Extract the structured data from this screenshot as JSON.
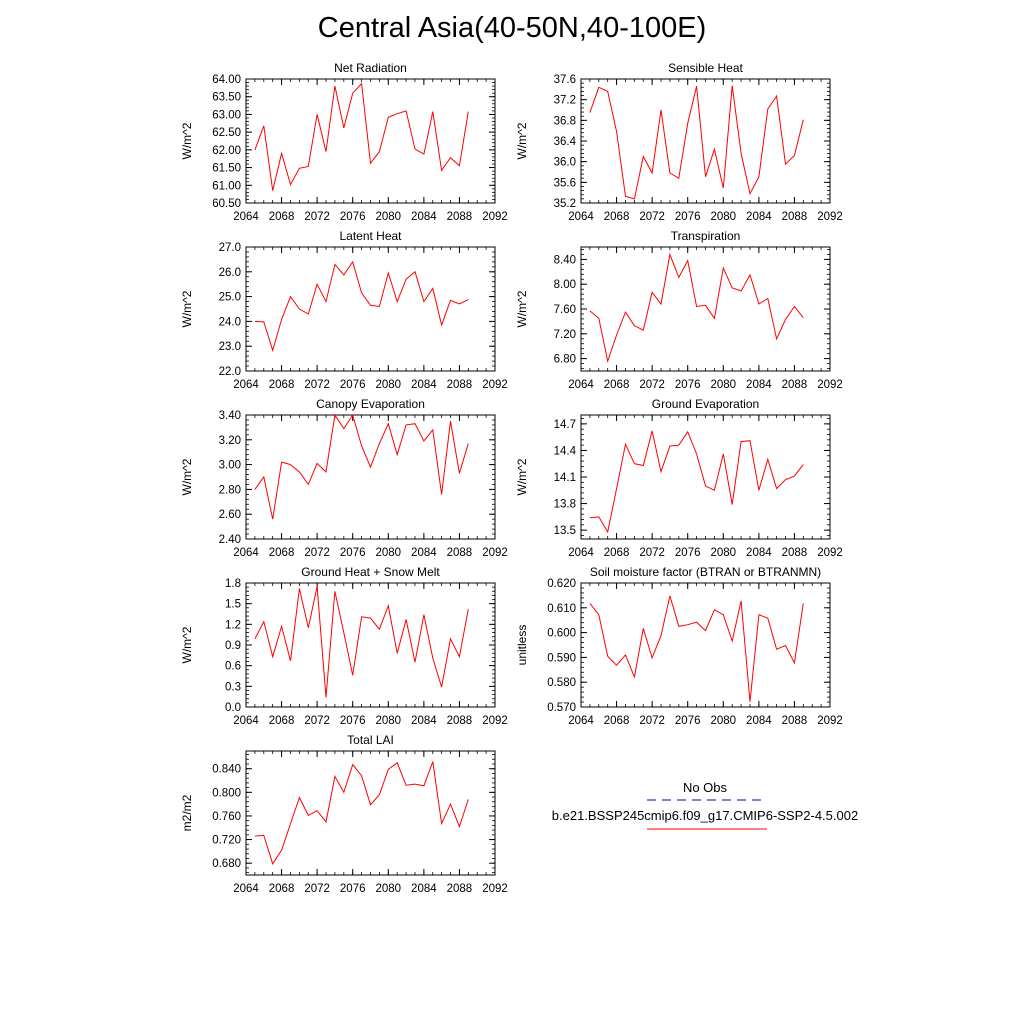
{
  "title": "Central Asia(40-50N,40-100E)",
  "legend": {
    "title": "No Obs",
    "obs_color": "#3a3aa0",
    "series_label": "b.e21.BSSP245cmip6.f09_g17.CMIP6-SSP2-4.5.002",
    "series_color": "#ff0000"
  },
  "chart_data": [
    {
      "type": "line",
      "title": "Net Radiation",
      "ylabel": "W/m^2",
      "xlim": [
        2064,
        2092
      ],
      "ylim": [
        60.5,
        64.0
      ],
      "xticks": [
        "2064",
        "2068",
        "2072",
        "2076",
        "2080",
        "2084",
        "2088",
        "2092"
      ],
      "yticks": [
        "60.50",
        "61.00",
        "61.50",
        "62.00",
        "62.50",
        "63.00",
        "63.50",
        "64.00"
      ],
      "x": [
        2065,
        2066,
        2067,
        2068,
        2069,
        2070,
        2071,
        2072,
        2073,
        2074,
        2075,
        2076,
        2077,
        2078,
        2079,
        2080,
        2081,
        2082,
        2083,
        2084,
        2085,
        2086,
        2087,
        2088,
        2089
      ],
      "values": [
        62.0,
        62.68,
        60.85,
        61.9,
        61.02,
        61.48,
        61.53,
        63.0,
        61.95,
        63.8,
        62.62,
        63.6,
        63.87,
        61.62,
        61.95,
        62.92,
        63.02,
        63.1,
        62.02,
        61.88,
        63.08,
        61.42,
        61.78,
        61.55,
        63.08
      ]
    },
    {
      "type": "line",
      "title": "Sensible Heat",
      "ylabel": "W/m^2",
      "xlim": [
        2064,
        2092
      ],
      "ylim": [
        35.2,
        37.6
      ],
      "xticks": [
        "2064",
        "2068",
        "2072",
        "2076",
        "2080",
        "2084",
        "2088",
        "2092"
      ],
      "yticks": [
        "35.2",
        "35.6",
        "36.0",
        "36.4",
        "36.8",
        "37.2",
        "37.6"
      ],
      "x": [
        2065,
        2066,
        2067,
        2068,
        2069,
        2070,
        2071,
        2072,
        2073,
        2074,
        2075,
        2076,
        2077,
        2078,
        2079,
        2080,
        2081,
        2082,
        2083,
        2084,
        2085,
        2086,
        2087,
        2088,
        2089
      ],
      "values": [
        36.95,
        37.44,
        37.36,
        36.58,
        35.33,
        35.28,
        36.1,
        35.78,
        37.0,
        35.78,
        35.68,
        36.74,
        37.46,
        35.71,
        36.24,
        35.49,
        37.47,
        36.16,
        35.38,
        35.71,
        37.02,
        37.27,
        35.95,
        36.12,
        36.81
      ]
    },
    {
      "type": "line",
      "title": "Latent Heat",
      "ylabel": "W/m^2",
      "xlim": [
        2064,
        2092
      ],
      "ylim": [
        22.0,
        27.0
      ],
      "xticks": [
        "2064",
        "2068",
        "2072",
        "2076",
        "2080",
        "2084",
        "2088",
        "2092"
      ],
      "yticks": [
        "22.0",
        "23.0",
        "24.0",
        "25.0",
        "26.0",
        "27.0"
      ],
      "x": [
        2065,
        2066,
        2067,
        2068,
        2069,
        2070,
        2071,
        2072,
        2073,
        2074,
        2075,
        2076,
        2077,
        2078,
        2079,
        2080,
        2081,
        2082,
        2083,
        2084,
        2085,
        2086,
        2087,
        2088,
        2089
      ],
      "values": [
        24.0,
        23.98,
        22.83,
        24.08,
        25.0,
        24.5,
        24.3,
        25.5,
        24.8,
        26.3,
        25.88,
        26.4,
        25.15,
        24.65,
        24.6,
        25.95,
        24.8,
        25.7,
        26.0,
        24.8,
        25.33,
        23.85,
        24.85,
        24.7,
        24.88
      ]
    },
    {
      "type": "line",
      "title": "Transpiration",
      "ylabel": "W/m^2",
      "xlim": [
        2064,
        2092
      ],
      "ylim": [
        6.6,
        8.6
      ],
      "xticks": [
        "2064",
        "2068",
        "2072",
        "2076",
        "2080",
        "2084",
        "2088",
        "2092"
      ],
      "yticks": [
        "6.80",
        "7.20",
        "7.60",
        "8.00",
        "8.40"
      ],
      "x": [
        2065,
        2066,
        2067,
        2068,
        2069,
        2070,
        2071,
        2072,
        2073,
        2074,
        2075,
        2076,
        2077,
        2078,
        2079,
        2080,
        2081,
        2082,
        2083,
        2084,
        2085,
        2086,
        2087,
        2088,
        2089
      ],
      "values": [
        7.57,
        7.45,
        6.76,
        7.18,
        7.55,
        7.33,
        7.26,
        7.87,
        7.68,
        8.48,
        8.11,
        8.38,
        7.64,
        7.66,
        7.45,
        8.26,
        7.94,
        7.89,
        8.15,
        7.68,
        7.77,
        7.12,
        7.43,
        7.64,
        7.46
      ]
    },
    {
      "type": "line",
      "title": "Canopy Evaporation",
      "ylabel": "W/m^2",
      "xlim": [
        2064,
        2092
      ],
      "ylim": [
        2.4,
        3.4
      ],
      "xticks": [
        "2064",
        "2068",
        "2072",
        "2076",
        "2080",
        "2084",
        "2088",
        "2092"
      ],
      "yticks": [
        "2.40",
        "2.60",
        "2.80",
        "3.00",
        "3.20",
        "3.40"
      ],
      "x": [
        2065,
        2066,
        2067,
        2068,
        2069,
        2070,
        2071,
        2072,
        2073,
        2074,
        2075,
        2076,
        2077,
        2078,
        2079,
        2080,
        2081,
        2082,
        2083,
        2084,
        2085,
        2086,
        2087,
        2088,
        2089
      ],
      "values": [
        2.8,
        2.9,
        2.56,
        3.02,
        3.0,
        2.94,
        2.84,
        3.01,
        2.94,
        3.4,
        3.29,
        3.4,
        3.15,
        2.98,
        3.17,
        3.33,
        3.08,
        3.32,
        3.33,
        3.19,
        3.28,
        2.76,
        3.35,
        2.93,
        3.17
      ]
    },
    {
      "type": "line",
      "title": "Ground Evaporation",
      "ylabel": "W/m^2",
      "xlim": [
        2064,
        2092
      ],
      "ylim": [
        13.4,
        14.8
      ],
      "xticks": [
        "2064",
        "2068",
        "2072",
        "2076",
        "2080",
        "2084",
        "2088",
        "2092"
      ],
      "yticks": [
        "13.5",
        "13.8",
        "14.1",
        "14.4",
        "14.7"
      ],
      "x": [
        2065,
        2066,
        2067,
        2068,
        2069,
        2070,
        2071,
        2072,
        2073,
        2074,
        2075,
        2076,
        2077,
        2078,
        2079,
        2080,
        2081,
        2082,
        2083,
        2084,
        2085,
        2086,
        2087,
        2088,
        2089
      ],
      "values": [
        13.64,
        13.65,
        13.48,
        13.97,
        14.47,
        14.25,
        14.23,
        14.62,
        14.16,
        14.45,
        14.46,
        14.61,
        14.36,
        14.0,
        13.95,
        14.36,
        13.79,
        14.5,
        14.51,
        13.95,
        14.3,
        13.97,
        14.07,
        14.11,
        14.24
      ]
    },
    {
      "type": "line",
      "title": "Ground Heat + Snow Melt",
      "ylabel": "W/m^2",
      "xlim": [
        2064,
        2092
      ],
      "ylim": [
        0.0,
        1.8
      ],
      "xticks": [
        "2064",
        "2068",
        "2072",
        "2076",
        "2080",
        "2084",
        "2088",
        "2092"
      ],
      "yticks": [
        "0.0",
        "0.3",
        "0.6",
        "0.9",
        "1.2",
        "1.5",
        "1.8"
      ],
      "x": [
        2065,
        2066,
        2067,
        2068,
        2069,
        2070,
        2071,
        2072,
        2073,
        2074,
        2075,
        2076,
        2077,
        2078,
        2079,
        2080,
        2081,
        2082,
        2083,
        2084,
        2085,
        2086,
        2087,
        2088,
        2089
      ],
      "values": [
        0.99,
        1.24,
        0.73,
        1.17,
        0.67,
        1.72,
        1.15,
        1.75,
        0.14,
        1.68,
        1.08,
        0.46,
        1.31,
        1.29,
        1.13,
        1.47,
        0.78,
        1.27,
        0.65,
        1.34,
        0.71,
        0.29,
        0.99,
        0.73,
        1.42
      ]
    },
    {
      "type": "line",
      "title": "Soil moisture factor (BTRAN or BTRANMN)",
      "ylabel": "unitless",
      "xlim": [
        2064,
        2092
      ],
      "ylim": [
        0.57,
        0.62
      ],
      "xticks": [
        "2064",
        "2068",
        "2072",
        "2076",
        "2080",
        "2084",
        "2088",
        "2092"
      ],
      "yticks": [
        "0.570",
        "0.580",
        "0.590",
        "0.600",
        "0.610",
        "0.620"
      ],
      "x": [
        2065,
        2066,
        2067,
        2068,
        2069,
        2070,
        2071,
        2072,
        2073,
        2074,
        2075,
        2076,
        2077,
        2078,
        2079,
        2080,
        2081,
        2082,
        2083,
        2084,
        2085,
        2086,
        2087,
        2088,
        2089
      ],
      "values": [
        0.6118,
        0.6072,
        0.5905,
        0.5868,
        0.591,
        0.5821,
        0.6017,
        0.5898,
        0.5988,
        0.6148,
        0.6025,
        0.6032,
        0.6042,
        0.6008,
        0.6092,
        0.6072,
        0.5966,
        0.6128,
        0.5721,
        0.6072,
        0.6058,
        0.5933,
        0.5948,
        0.5878,
        0.6118
      ]
    },
    {
      "type": "line",
      "title": "Total LAI",
      "ylabel": "m2/m2",
      "xlim": [
        2064,
        2092
      ],
      "ylim": [
        0.66,
        0.87
      ],
      "xticks": [
        "2064",
        "2068",
        "2072",
        "2076",
        "2080",
        "2084",
        "2088",
        "2092"
      ],
      "yticks": [
        "0.680",
        "0.720",
        "0.760",
        "0.800",
        "0.840"
      ],
      "x": [
        2065,
        2066,
        2067,
        2068,
        2069,
        2070,
        2071,
        2072,
        2073,
        2074,
        2075,
        2076,
        2077,
        2078,
        2079,
        2080,
        2081,
        2082,
        2083,
        2084,
        2085,
        2086,
        2087,
        2088,
        2089
      ],
      "values": [
        0.726,
        0.727,
        0.679,
        0.702,
        0.747,
        0.791,
        0.761,
        0.769,
        0.75,
        0.827,
        0.8,
        0.847,
        0.828,
        0.779,
        0.796,
        0.839,
        0.85,
        0.812,
        0.814,
        0.811,
        0.852,
        0.747,
        0.78,
        0.742,
        0.788
      ]
    }
  ]
}
